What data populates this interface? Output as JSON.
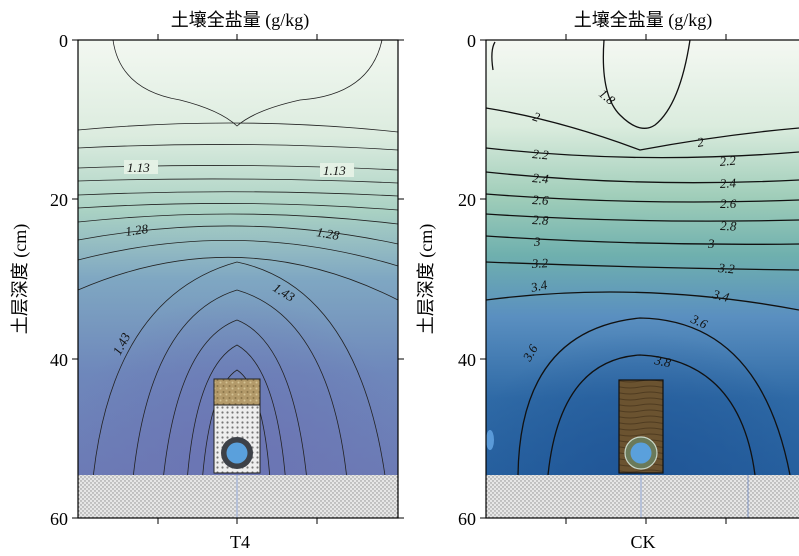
{
  "chart_data": [
    {
      "type": "contour",
      "title": "土壤全盐量 (g/kg)",
      "ylabel": "土层深度 (cm)",
      "xlabel": "T4",
      "ylim": [
        0,
        60
      ],
      "yticks": [
        0,
        20,
        40,
        60
      ],
      "contour_labels": [
        "1.13",
        "1.13",
        "1.28",
        "1.28",
        "1.43",
        "1.43"
      ],
      "contour_levels": [
        1.13,
        1.28,
        1.43
      ],
      "colors": {
        "low": "#f3f8f1",
        "mid": "#8fc0b6",
        "high": "#6a78b3"
      }
    },
    {
      "type": "contour",
      "title": "土壤全盐量 (g/kg)",
      "ylabel": "土层深度 (cm)",
      "xlabel": "CK",
      "ylim": [
        0,
        60
      ],
      "yticks": [
        0,
        20,
        40,
        60
      ],
      "contour_levels": [
        1.8,
        2,
        2.2,
        2.4,
        2.6,
        2.8,
        3,
        3.2,
        3.4,
        3.6,
        3.8
      ],
      "contour_labels": [
        "1.8",
        "2",
        "2",
        "2.2",
        "2.2",
        "2.4",
        "2.4",
        "2.6",
        "2.6",
        "2.8",
        "2.8",
        "3",
        "3",
        "3.2",
        "3.2",
        "3.4",
        "3.4",
        "3.6",
        "3.6",
        "3.8"
      ],
      "colors": {
        "low": "#f4f8f2",
        "mid": "#7ab7a8",
        "high": "#235c9c"
      }
    }
  ]
}
